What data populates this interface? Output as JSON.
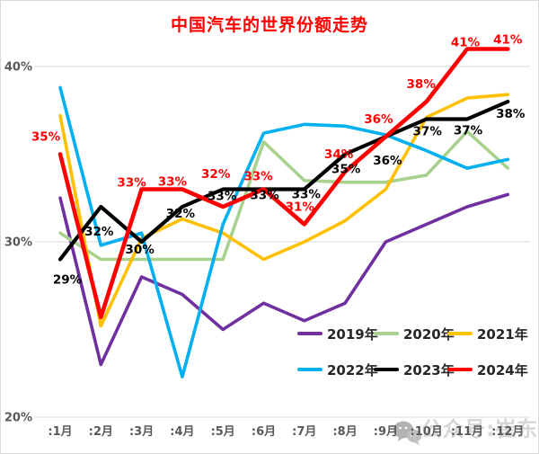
{
  "title": "中国汽车的世界份额走势",
  "title_color": "#FF0000",
  "watermark": {
    "icon": "wechat-icon",
    "text": "公众号:崔东树"
  },
  "axes": {
    "y_ticks": [
      "40%",
      "30%",
      "20%"
    ],
    "y_tick_values": [
      40,
      30,
      20
    ],
    "x_labels": [
      ":1月",
      ":2月",
      ":3月",
      ":4月",
      ":5月",
      ":6月",
      ":7月",
      ":8月",
      ":9月",
      ":10月",
      ":11月",
      ":12月"
    ]
  },
  "colors": {
    "grid": "#d9d9d9",
    "axis_text": "#595959"
  },
  "chart_data": {
    "type": "line",
    "title": "中国汽车的世界份额走势",
    "x_categories": [
      "1月",
      "2月",
      "3月",
      "4月",
      "5月",
      "6月",
      "7月",
      "8月",
      "9月",
      "10月",
      "11月",
      "12月"
    ],
    "ylabel": "",
    "xlabel": "",
    "ylim": [
      20,
      43
    ],
    "yticks_pct": [
      20,
      30,
      40
    ],
    "grid": "horizontal-only",
    "legend_position": "inside-bottom-right-two-rows",
    "series": [
      {
        "name": "2019年",
        "color": "#7030A0",
        "values": [
          32.5,
          23,
          28,
          27,
          25,
          26.5,
          25.5,
          26.5,
          30,
          31,
          32,
          32.7
        ]
      },
      {
        "name": "2020年",
        "color": "#A9D18E",
        "values": [
          30.5,
          29,
          29,
          29,
          29,
          35.7,
          33.5,
          33.4,
          33.4,
          33.8,
          36.3,
          34.2
        ]
      },
      {
        "name": "2021年",
        "color": "#FFC000",
        "values": [
          37.2,
          25.2,
          30.2,
          31.3,
          30.5,
          29,
          30,
          31.2,
          33,
          37.1,
          38.2,
          38.4
        ]
      },
      {
        "name": "2022年",
        "color": "#00B0F0",
        "values": [
          38.8,
          29.8,
          30.5,
          22.3,
          31,
          36.2,
          36.7,
          36.6,
          36.1,
          35.2,
          34.2,
          34.7
        ]
      },
      {
        "name": "2023年",
        "color": "#000000",
        "values": [
          29,
          32,
          30,
          32,
          33,
          33,
          33,
          35,
          36,
          37,
          37,
          38
        ],
        "labels": [
          "29%",
          "32%",
          "30%",
          "32%",
          "33%",
          "33%",
          "33%",
          "35%",
          "36%",
          "37%",
          "37%",
          "38%"
        ],
        "label_offsets": [
          [
            8,
            27
          ],
          [
            -2,
            32
          ],
          [
            -2,
            13
          ],
          [
            -2,
            12
          ],
          [
            -1,
            12
          ],
          [
            1,
            11
          ],
          [
            2,
            10
          ],
          [
            1,
            21
          ],
          [
            2,
            31
          ],
          [
            1,
            18
          ],
          [
            1,
            17
          ],
          [
            3,
            18
          ]
        ]
      },
      {
        "name": "2024年",
        "color": "#FF0000",
        "values": [
          35,
          25.7,
          33,
          33,
          32,
          33,
          31,
          34,
          36,
          38,
          41,
          41
        ],
        "labels": [
          "35%",
          null,
          "33%",
          "33%",
          "32%",
          "33%",
          "31%",
          "34%",
          "36%",
          "38%",
          "41%",
          "41%"
        ],
        "label_offsets": [
          [
            -16,
            -15
          ],
          [
            0,
            0
          ],
          [
            -11,
            -3
          ],
          [
            -11,
            -4
          ],
          [
            -8,
            -32
          ],
          [
            -6,
            -10
          ],
          [
            -5,
            -15
          ],
          [
            -7,
            -15
          ],
          [
            -8,
            -15
          ],
          [
            -6,
            -15
          ],
          [
            -2,
            -3
          ],
          [
            0,
            -6
          ]
        ]
      }
    ],
    "legend": {
      "rows": [
        [
          "2019年",
          "2020年",
          "2021年"
        ],
        [
          "2022年",
          "2023年",
          "2024年"
        ]
      ]
    }
  }
}
